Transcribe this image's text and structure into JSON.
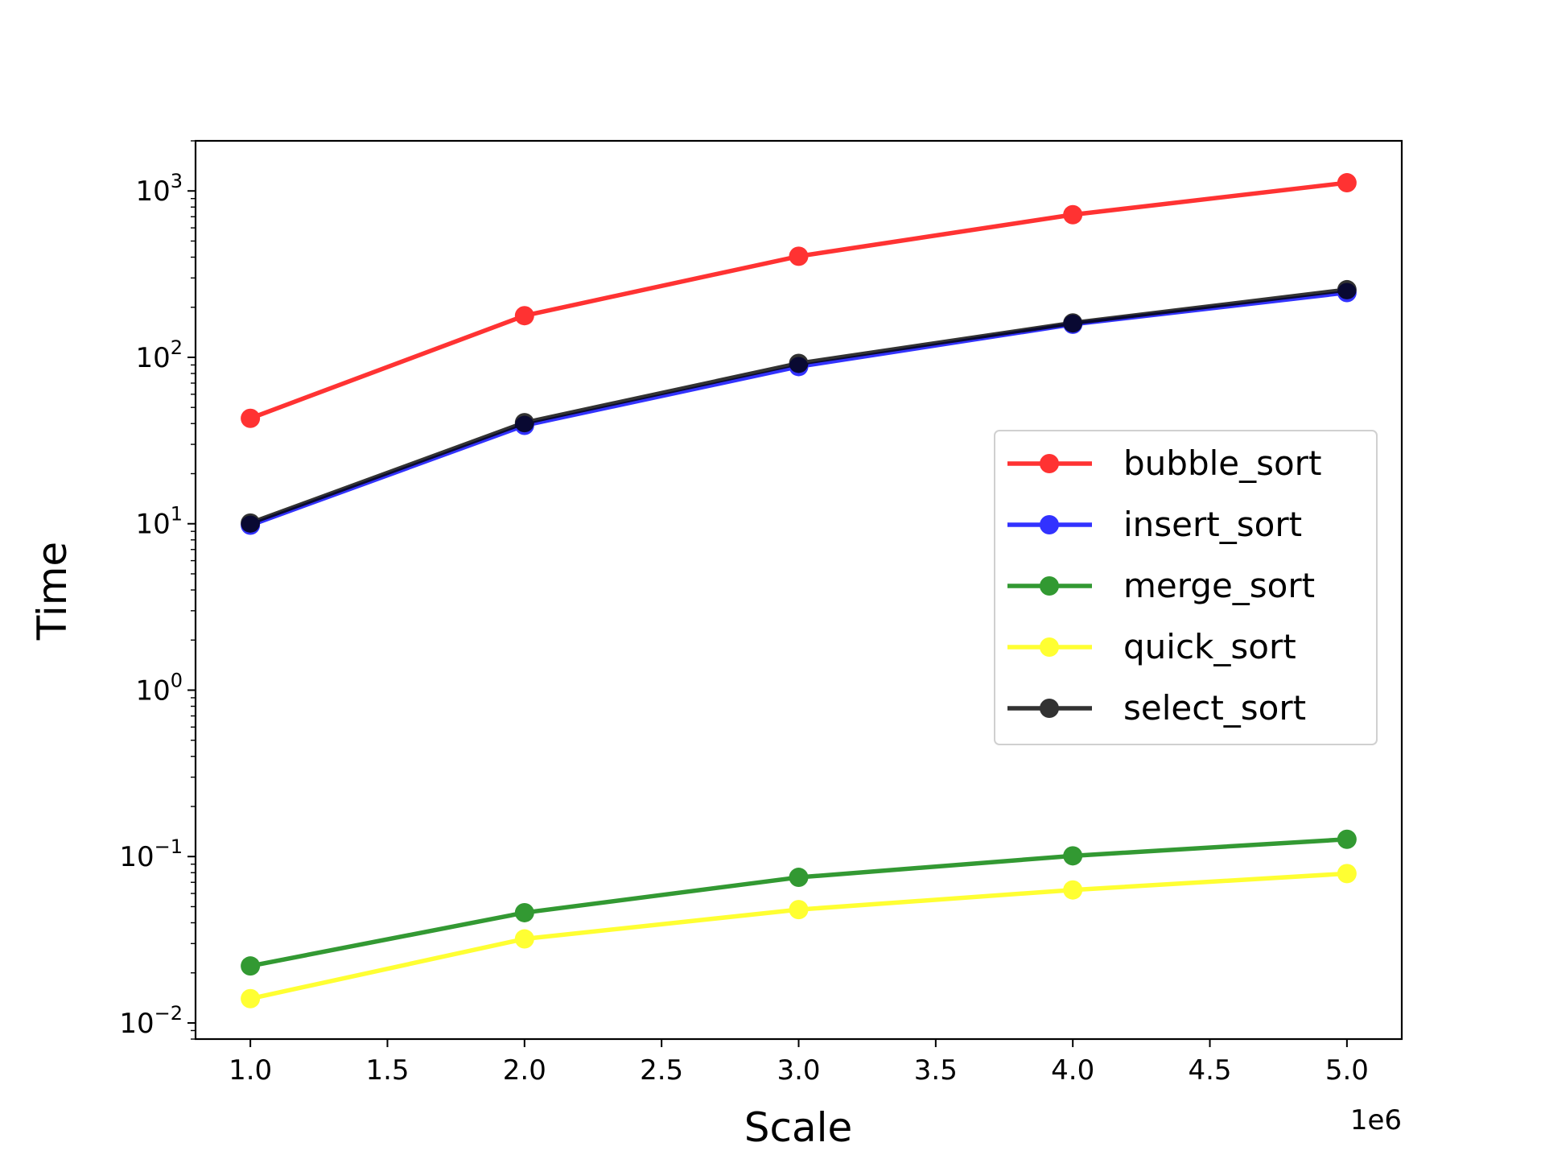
{
  "chart_data": {
    "type": "line",
    "title": "",
    "xlabel": "Scale",
    "ylabel": "Time",
    "x_offset_text": "1e6",
    "x": [
      1000000,
      2000000,
      3000000,
      4000000,
      5000000
    ],
    "xlim": [
      800000,
      5200000
    ],
    "x_ticks": [
      1.0,
      1.5,
      2.0,
      2.5,
      3.0,
      3.5,
      4.0,
      4.5,
      5.0
    ],
    "x_tick_labels": [
      "1.0",
      "1.5",
      "2.0",
      "2.5",
      "3.0",
      "3.5",
      "4.0",
      "4.5",
      "5.0"
    ],
    "yscale": "log",
    "ylim": [
      0.008,
      2000
    ],
    "y_ticks": [
      {
        "value": 0.01,
        "base": "10",
        "exp": "−2"
      },
      {
        "value": 0.1,
        "base": "10",
        "exp": "−1"
      },
      {
        "value": 1,
        "base": "10",
        "exp": "0"
      },
      {
        "value": 10,
        "base": "10",
        "exp": "1"
      },
      {
        "value": 100,
        "base": "10",
        "exp": "2"
      },
      {
        "value": 1000,
        "base": "10",
        "exp": "3"
      }
    ],
    "grid": false,
    "legend_position": "center-right",
    "series": [
      {
        "name": "bubble_sort",
        "color": "#ff0000",
        "values": [
          43,
          178,
          405,
          720,
          1120
        ]
      },
      {
        "name": "insert_sort",
        "color": "#0000ff",
        "values": [
          9.8,
          39,
          88,
          158,
          245
        ]
      },
      {
        "name": "merge_sort",
        "color": "#008000",
        "values": [
          0.022,
          0.046,
          0.075,
          0.101,
          0.127
        ]
      },
      {
        "name": "quick_sort",
        "color": "#ffff00",
        "values": [
          0.014,
          0.032,
          0.048,
          0.063,
          0.079
        ]
      },
      {
        "name": "select_sort",
        "color": "#000000",
        "values": [
          10.1,
          40.5,
          92,
          161,
          255
        ]
      }
    ]
  }
}
